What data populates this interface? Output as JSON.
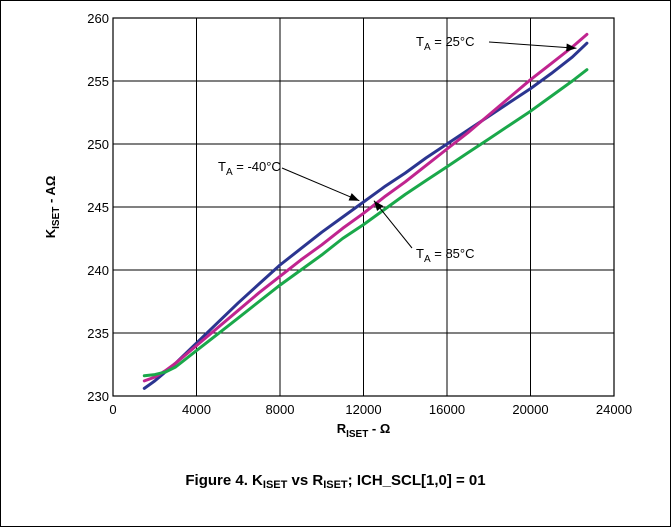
{
  "chart_data": {
    "type": "line",
    "xlabel": {
      "main": "R",
      "sub": "ISET",
      "rest": " - Ω"
    },
    "ylabel": {
      "main": "K",
      "sub": "ISET",
      "rest": " - AΩ"
    },
    "xlim": [
      0,
      24000
    ],
    "ylim": [
      230,
      260
    ],
    "xticks": [
      0,
      4000,
      8000,
      12000,
      16000,
      20000,
      24000
    ],
    "yticks": [
      230,
      235,
      240,
      245,
      250,
      255,
      260
    ],
    "grid": true,
    "series": [
      {
        "name": "T_A = -40°C",
        "color": "#2b3590",
        "x": [
          1500,
          2000,
          2500,
          3000,
          4000,
          5000,
          6000,
          7000,
          8000,
          9000,
          10000,
          11000,
          12000,
          13000,
          14000,
          15000,
          16000,
          17000,
          18000,
          19000,
          20000,
          21000,
          22000,
          22700
        ],
        "y": [
          230.6,
          231.2,
          231.9,
          232.6,
          234.2,
          235.8,
          237.4,
          238.9,
          240.4,
          241.7,
          243.0,
          244.2,
          245.4,
          246.6,
          247.7,
          248.9,
          250.0,
          251.1,
          252.2,
          253.3,
          254.4,
          255.6,
          256.9,
          258.0
        ]
      },
      {
        "name": "T_A = 25°C",
        "color": "#c0248f",
        "x": [
          1500,
          2000,
          2500,
          3000,
          4000,
          5000,
          6000,
          7000,
          8000,
          9000,
          10000,
          11000,
          12000,
          13000,
          14000,
          15000,
          16000,
          17000,
          18000,
          19000,
          20000,
          21000,
          22000,
          22700
        ],
        "y": [
          231.2,
          231.5,
          232.0,
          232.6,
          234.0,
          235.4,
          236.8,
          238.2,
          239.5,
          240.8,
          242.0,
          243.3,
          244.5,
          245.8,
          247.0,
          248.3,
          249.6,
          250.9,
          252.3,
          253.7,
          255.1,
          256.4,
          257.7,
          258.7
        ]
      },
      {
        "name": "T_A = 85°C",
        "color": "#1aa84a",
        "x": [
          1500,
          2000,
          2500,
          3000,
          4000,
          5000,
          6000,
          7000,
          8000,
          9000,
          10000,
          11000,
          12000,
          13000,
          14000,
          15000,
          16000,
          17000,
          18000,
          19000,
          20000,
          21000,
          22000,
          22700
        ],
        "y": [
          231.6,
          231.7,
          231.9,
          232.3,
          233.6,
          234.9,
          236.2,
          237.5,
          238.8,
          240.0,
          241.2,
          242.5,
          243.6,
          244.8,
          246.0,
          247.1,
          248.2,
          249.3,
          250.4,
          251.5,
          252.6,
          253.8,
          255.0,
          255.9
        ]
      }
    ],
    "annotations": [
      {
        "label": "T",
        "sub": "A",
        "rest": " = -40°C",
        "arrow_to": [
          11800,
          245.5
        ]
      },
      {
        "label": "T",
        "sub": "A",
        "rest": " = 25°C",
        "arrow_to": [
          22200,
          257.6
        ]
      },
      {
        "label": "T",
        "sub": "A",
        "rest": " = 85°C",
        "arrow_to": [
          12500,
          245.5
        ]
      }
    ]
  },
  "caption": {
    "prefix": "Figure 4. K",
    "sub1": "ISET",
    "middle": " vs R",
    "sub2": "ISET",
    "suffix": "; ICH_SCL[1,0] = 01"
  }
}
